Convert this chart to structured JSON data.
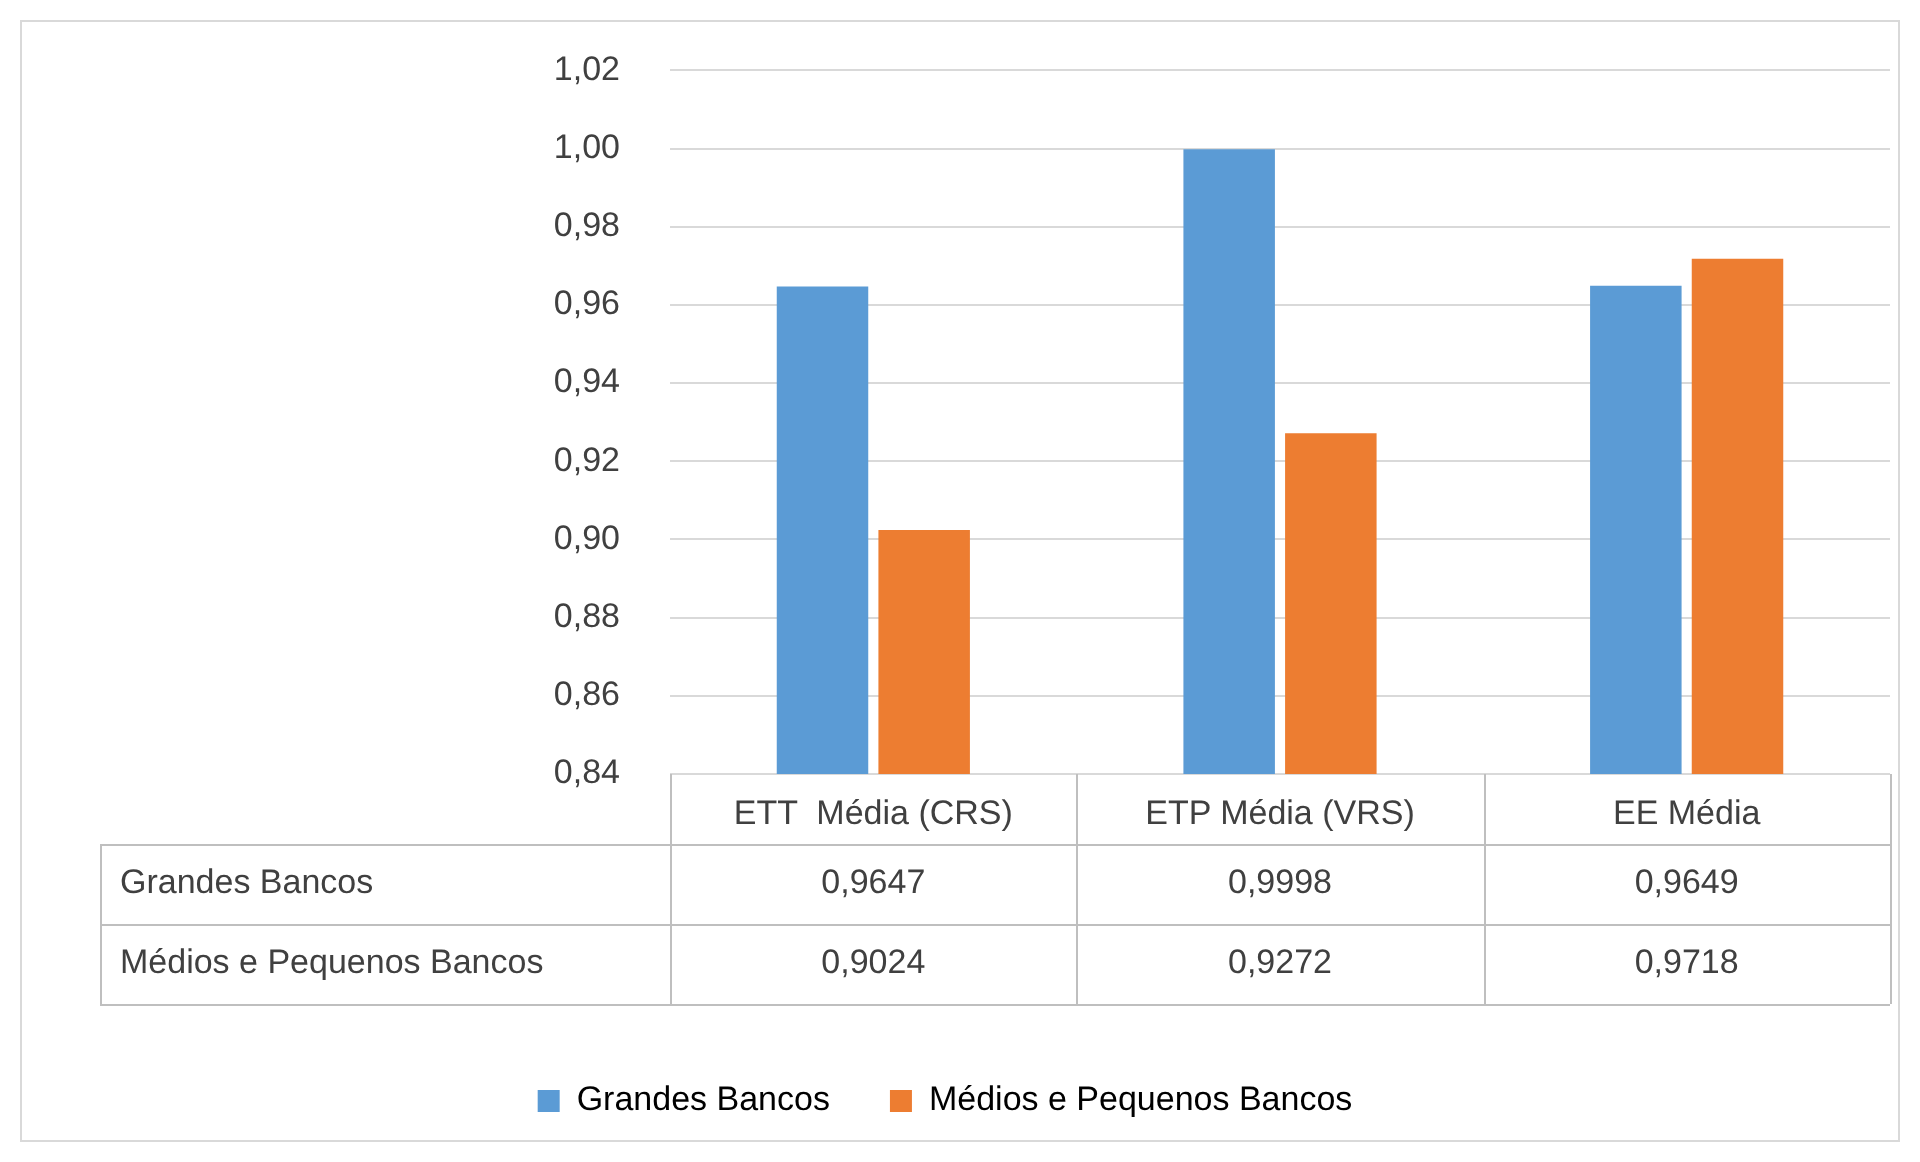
{
  "chart_data": {
    "type": "bar",
    "categories": [
      "ETT  Média (CRS)",
      "ETP Média (VRS)",
      "EE Média"
    ],
    "series": [
      {
        "name": "Grandes Bancos",
        "color": "#5b9bd5",
        "values": [
          0.9647,
          0.9998,
          0.9649
        ],
        "value_labels": [
          "0,9647",
          "0,9998",
          "0,9649"
        ]
      },
      {
        "name": "Médios e Pequenos Bancos",
        "color": "#ed7d31",
        "values": [
          0.9024,
          0.9272,
          0.9718
        ],
        "value_labels": [
          "0,9024",
          "0,9272",
          "0,9718"
        ]
      }
    ],
    "ylim": [
      0.84,
      1.02
    ],
    "yticks": [
      {
        "value": 0.84,
        "label": "0,84"
      },
      {
        "value": 0.86,
        "label": "0,86"
      },
      {
        "value": 0.88,
        "label": "0,88"
      },
      {
        "value": 0.9,
        "label": "0,90"
      },
      {
        "value": 0.92,
        "label": "0,92"
      },
      {
        "value": 0.94,
        "label": "0,94"
      },
      {
        "value": 0.96,
        "label": "0,96"
      },
      {
        "value": 0.98,
        "label": "0,98"
      },
      {
        "value": 1.0,
        "label": "1,00"
      },
      {
        "value": 1.02,
        "label": "1,02"
      }
    ],
    "grid": "y",
    "legend": "bottom"
  }
}
